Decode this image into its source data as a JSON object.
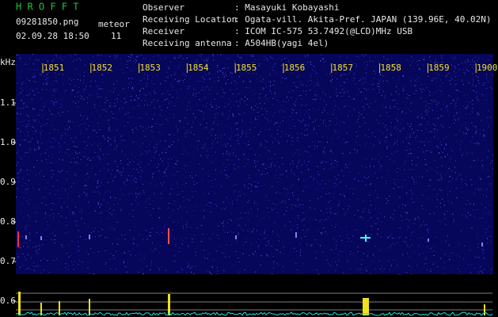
{
  "header": {
    "app": "H R O F F T",
    "file": "09281850.png",
    "datetime": "02.09.28 18:50",
    "meteor_label": "meteor",
    "meteor_count": "11"
  },
  "info": [
    {
      "label": "Observer",
      "value": ": Masayuki Kobayashi"
    },
    {
      "label": "Receiving Location",
      "value": ": Ogata-vill. Akita-Pref. JAPAN (139.96E, 40.02N)"
    },
    {
      "label": "Receiver",
      "value": ": ICOM IC-575 53.7492(@LCD)MHz USB"
    },
    {
      "label": "Receiving antenna",
      "value": ": A504HB(yagi 4el)"
    }
  ],
  "time_labels": [
    "1851",
    "1852",
    "1853",
    "1854",
    "1855",
    "1856",
    "1857",
    "1858",
    "1859",
    "1900"
  ],
  "freq_unit": "kHz",
  "freq_labels": [
    "1.1",
    "1.0",
    "0.9",
    "0.8",
    "0.7",
    "0.6"
  ]
}
